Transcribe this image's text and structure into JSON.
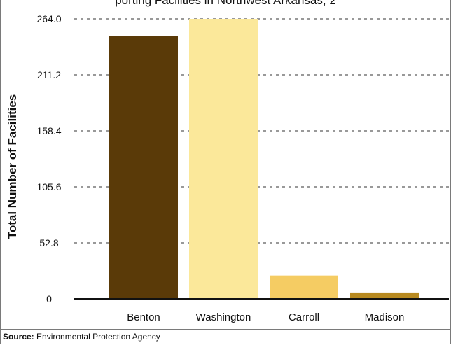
{
  "chart_data": {
    "type": "bar",
    "title": "porting Facilities in Northwest Arkansas, 2",
    "ylabel": "Total Number of Facilities",
    "xlabel": "",
    "categories": [
      "Benton",
      "Washington",
      "Carroll",
      "Madison"
    ],
    "values": [
      248,
      264,
      22,
      6
    ],
    "colors": [
      "#5a3a08",
      "#fbe89a",
      "#f5cc63",
      "#b88a20"
    ],
    "ylim": [
      0,
      264
    ],
    "yticks": [
      "264.0",
      "211.2",
      "158.4",
      "105.6",
      "52.8",
      "0"
    ],
    "ytick_values": [
      264,
      211.2,
      158.4,
      105.6,
      52.8,
      0
    ],
    "grid": true,
    "legend": "none"
  },
  "source": {
    "label": "Source:",
    "text": "Environmental Protection Agency"
  }
}
